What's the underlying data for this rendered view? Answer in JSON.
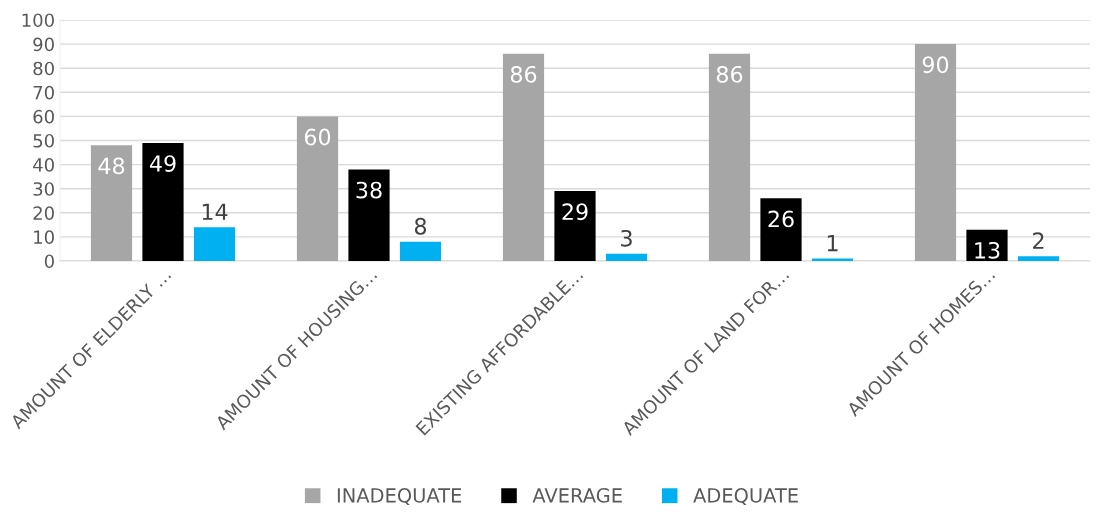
{
  "chart_data": {
    "type": "bar",
    "categories": [
      "AMOUNT OF ELDERLY …",
      "AMOUNT OF HOUSING…",
      "EXISTING AFFORDABLE…",
      "AMOUNT OF LAND FOR…",
      "AMOUNT OF HOMES…"
    ],
    "series": [
      {
        "name": "INADEQUATE",
        "color": "#a6a6a6",
        "values": [
          48,
          60,
          86,
          86,
          90
        ]
      },
      {
        "name": "AVERAGE",
        "color": "#000000",
        "values": [
          49,
          38,
          29,
          26,
          13
        ]
      },
      {
        "name": "ADEQUATE",
        "color": "#00b0f0",
        "values": [
          14,
          8,
          3,
          1,
          2
        ]
      }
    ],
    "ylim": [
      0,
      100
    ],
    "yticks": [
      0,
      10,
      20,
      30,
      40,
      50,
      60,
      70,
      80,
      90,
      100
    ],
    "grid": "y",
    "legend": "bottom",
    "data_labels": true
  }
}
